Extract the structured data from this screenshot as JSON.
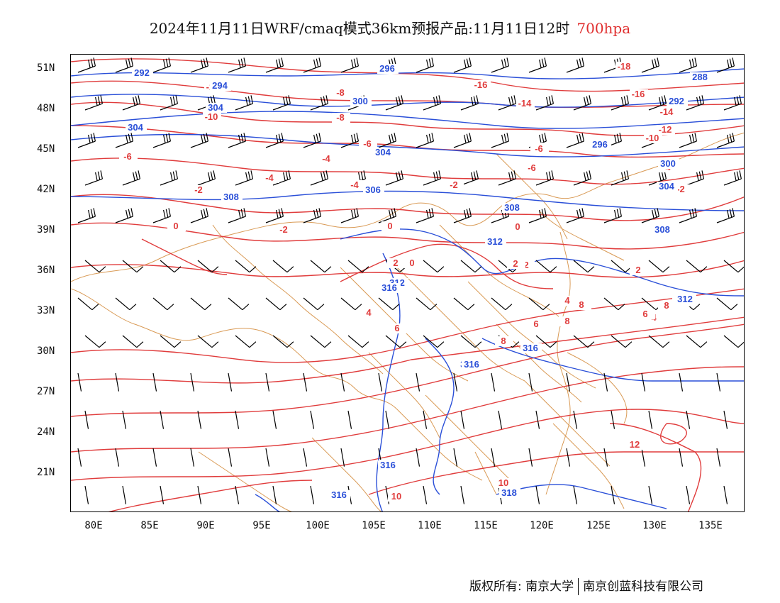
{
  "title": "2024年11月11日WRF/cmaq模式36km预报产品:11月11日12时",
  "level": "700hpa",
  "lat_labels": [
    "51N",
    "48N",
    "45N",
    "42N",
    "39N",
    "36N",
    "33N",
    "30N",
    "27N",
    "24N",
    "21N"
  ],
  "lon_labels": [
    "80E",
    "85E",
    "90E",
    "95E",
    "100E",
    "105E",
    "110E",
    "115E",
    "120E",
    "125E",
    "130E",
    "135E"
  ],
  "copyright": {
    "left": "版权所有: 南京大学",
    "right": "南京创蓝科技有限公司"
  },
  "colors": {
    "temperature": "#e03c3c",
    "geopotential": "#2a4fd8",
    "border": "#d99a55",
    "wind": "#000000"
  },
  "temperature_labels": [
    "-10",
    "-10",
    "-18",
    "-16",
    "-16",
    "-14",
    "-14",
    "-12",
    "-10",
    "-8",
    "-8",
    "-8",
    "-6",
    "-6",
    "-6",
    "-6",
    "-4",
    "-4",
    "-4",
    "-4",
    "-2",
    "-2",
    "-2",
    "-2",
    "0",
    "0",
    "0",
    "0",
    "-2",
    "2",
    "2",
    "2",
    "4",
    "-4",
    "4",
    "6",
    "6",
    "6",
    "8",
    "8",
    "8",
    "8",
    "8",
    "10",
    "10",
    "10",
    "12"
  ],
  "geopotential_labels": [
    "292",
    "296",
    "292",
    "288",
    "294",
    "300",
    "304",
    "304",
    "296",
    "300",
    "304",
    "306",
    "308",
    "308",
    "304",
    "308",
    "312",
    "312",
    "312",
    "316",
    "316",
    "316",
    "316",
    "316",
    "316",
    "316",
    "318"
  ]
}
